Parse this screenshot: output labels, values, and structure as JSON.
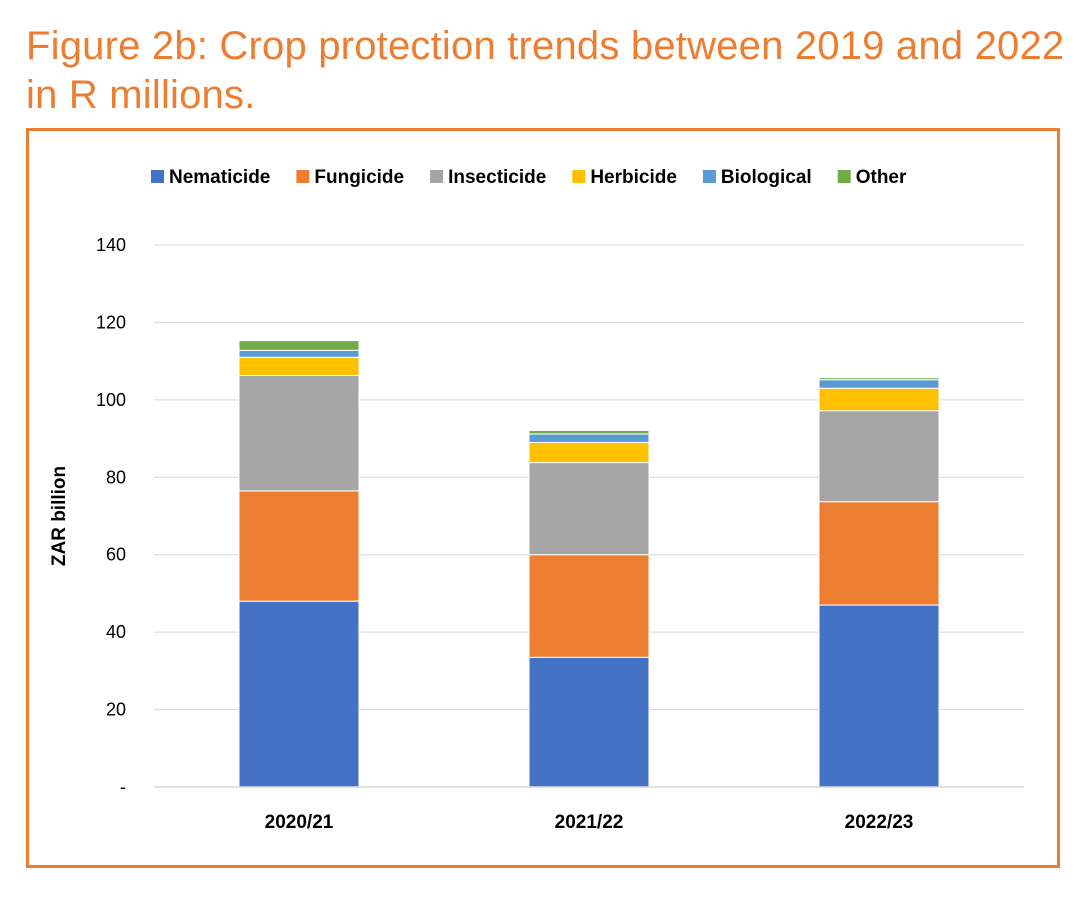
{
  "figure_title": "Figure 2b: Crop protection trends between 2019 and 2022 in R millions.",
  "colors": {
    "title": "#ED7D31",
    "frame": "#ED7D31",
    "gridline": "#D9D9D9",
    "axis_text": "#000000"
  },
  "chart_data": {
    "type": "bar",
    "stacked": true,
    "title": "",
    "xlabel": "",
    "ylabel": "ZAR billion",
    "ylim": [
      0,
      140
    ],
    "yticks": [
      0,
      20,
      40,
      60,
      80,
      100,
      120,
      140
    ],
    "ytick_labels": [
      "-",
      "20",
      "40",
      "60",
      "80",
      "100",
      "120",
      "140"
    ],
    "grid": true,
    "legend_position": "top",
    "categories": [
      "2020/21",
      "2021/22",
      "2022/23"
    ],
    "series": [
      {
        "name": "Nematicide",
        "color": "#4472C4",
        "values": [
          48,
          33.5,
          47
        ]
      },
      {
        "name": "Fungicide",
        "color": "#ED7D31",
        "values": [
          28.5,
          26.5,
          26.7
        ]
      },
      {
        "name": "Insecticide",
        "color": "#A5A5A5",
        "values": [
          29.8,
          23.8,
          23.5
        ]
      },
      {
        "name": "Herbicide",
        "color": "#FFC000",
        "values": [
          4.7,
          5.2,
          5.8
        ]
      },
      {
        "name": "Biological",
        "color": "#5B9BD5",
        "values": [
          1.8,
          2.2,
          2.2
        ]
      },
      {
        "name": "Other",
        "color": "#70AD47",
        "values": [
          2.5,
          0.9,
          0.5
        ]
      }
    ]
  }
}
